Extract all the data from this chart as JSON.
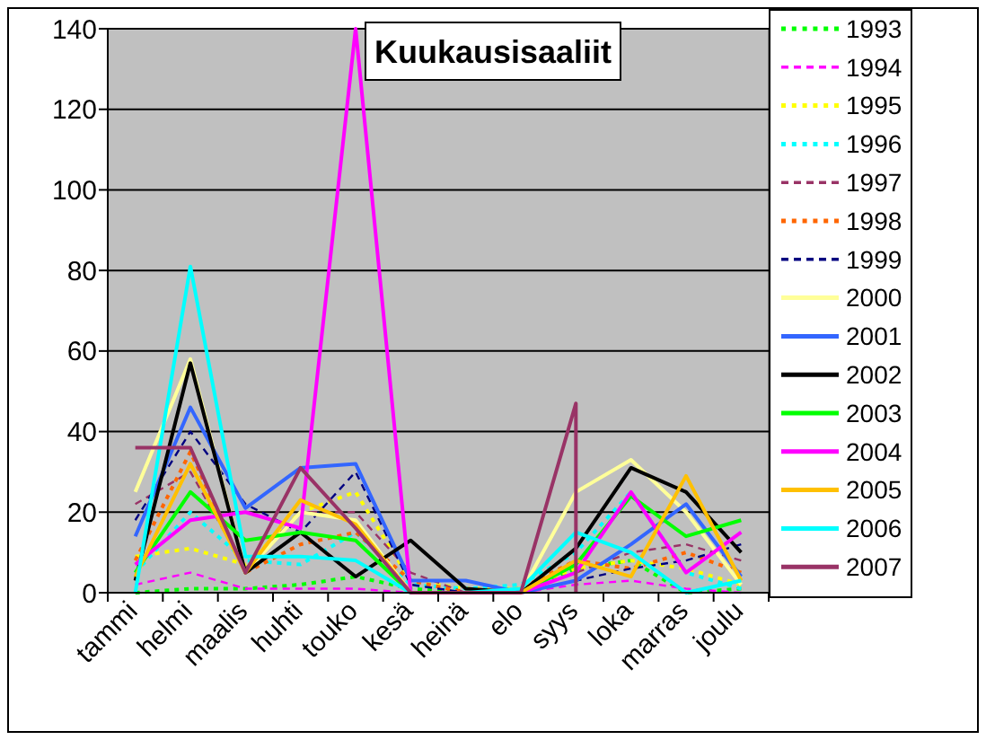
{
  "chart_data": {
    "type": "line",
    "title": "Kuukausisaaliit",
    "categories": [
      "tammi",
      "helmi",
      "maalis",
      "huhti",
      "touko",
      "kesä",
      "heinä",
      "elo",
      "syys",
      "loka",
      "marras",
      "joulu"
    ],
    "ylim": [
      0,
      140
    ],
    "yticks": [
      0,
      20,
      40,
      60,
      80,
      100,
      120,
      140
    ],
    "grid": "y",
    "legend": "right",
    "series": [
      {
        "name": "1993",
        "color": "#00ff00",
        "line_style": "dotted",
        "values": [
          0,
          1,
          1,
          2,
          4,
          1,
          0,
          0,
          6,
          8,
          0,
          1
        ]
      },
      {
        "name": "1994",
        "color": "#ff00ff",
        "line_style": "dashed",
        "values": [
          2,
          5,
          1,
          1,
          1,
          0,
          0,
          0,
          2,
          3,
          1,
          0
        ]
      },
      {
        "name": "1995",
        "color": "#ffff00",
        "line_style": "dotted",
        "values": [
          9,
          11,
          7,
          20,
          25,
          3,
          1,
          1,
          6,
          8,
          6,
          2
        ]
      },
      {
        "name": "1996",
        "color": "#00ffff",
        "line_style": "dotted",
        "values": [
          5,
          20,
          8,
          7,
          15,
          2,
          1,
          2,
          10,
          25,
          5,
          1
        ]
      },
      {
        "name": "1997",
        "color": "#993366",
        "line_style": "dashed",
        "values": [
          22,
          30,
          6,
          20,
          20,
          5,
          0,
          0,
          5,
          10,
          12,
          8
        ]
      },
      {
        "name": "1998",
        "color": "#ff6600",
        "line_style": "dotted",
        "values": [
          8,
          35,
          5,
          12,
          15,
          3,
          0,
          1,
          8,
          6,
          10,
          5
        ]
      },
      {
        "name": "1999",
        "color": "#000080",
        "line_style": "dashed",
        "values": [
          18,
          40,
          22,
          15,
          30,
          2,
          0,
          0,
          3,
          6,
          8,
          12
        ]
      },
      {
        "name": "2000",
        "color": "#ffff99",
        "line_style": "solid",
        "values": [
          25,
          58,
          5,
          20,
          18,
          0,
          0,
          0,
          25,
          33,
          20,
          2
        ]
      },
      {
        "name": "2001",
        "color": "#3366ff",
        "line_style": "solid",
        "values": [
          14,
          46,
          21,
          31,
          32,
          3,
          3,
          0,
          3,
          12,
          22,
          4
        ]
      },
      {
        "name": "2002",
        "color": "#000000",
        "line_style": "solid",
        "values": [
          3,
          57,
          5,
          15,
          4,
          13,
          1,
          0,
          11,
          31,
          25,
          10
        ]
      },
      {
        "name": "2003",
        "color": "#00ff00",
        "line_style": "solid",
        "values": [
          5,
          25,
          13,
          15,
          13,
          0,
          0,
          0,
          7,
          24,
          14,
          18
        ]
      },
      {
        "name": "2004",
        "color": "#ff00ff",
        "line_style": "solid",
        "values": [
          7,
          18,
          20,
          16,
          140,
          0,
          0,
          0,
          5,
          25,
          5,
          15
        ]
      },
      {
        "name": "2005",
        "color": "#ffc000",
        "line_style": "solid",
        "values": [
          4,
          32,
          5,
          23,
          17,
          0,
          0,
          0,
          8,
          4,
          29,
          3
        ]
      },
      {
        "name": "2006",
        "color": "#00ffff",
        "line_style": "solid",
        "values": [
          0,
          81,
          9,
          9,
          8,
          0,
          0,
          1,
          15,
          10,
          0,
          3
        ]
      },
      {
        "name": "2007",
        "color": "#993366",
        "line_style": "solid",
        "x": [
          "tammi",
          "helmi",
          "maalis",
          "huhti",
          "touko",
          "kesä",
          "heinä",
          "elo",
          "syys",
          "syys"
        ],
        "values": [
          36,
          36,
          5,
          31,
          16,
          0,
          0,
          0,
          47,
          0
        ]
      }
    ]
  }
}
